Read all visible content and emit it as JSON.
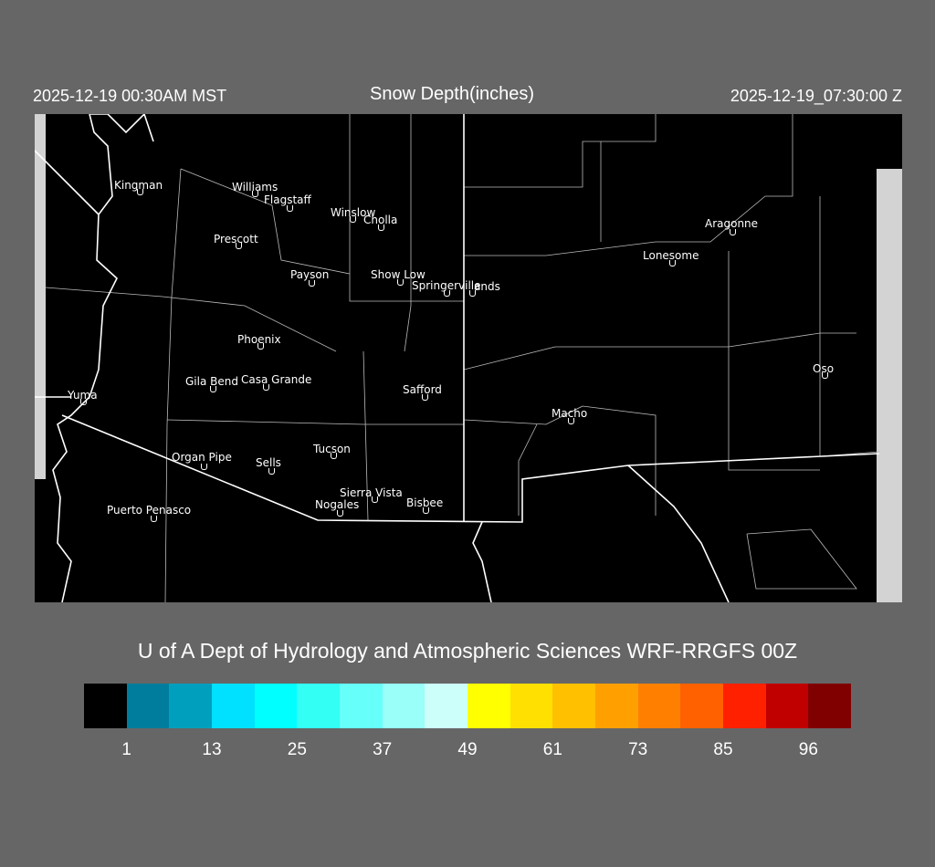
{
  "header": {
    "local_time": "2025-12-19 00:30AM MST",
    "title": "Snow Depth(inches)",
    "utc_time": "2025-12-19_07:30:00 Z"
  },
  "map": {
    "cities": [
      {
        "name": "Kingman"
      },
      {
        "name": "Williams"
      },
      {
        "name": "Flagstaff"
      },
      {
        "name": "Winslow"
      },
      {
        "name": "Cholla"
      },
      {
        "name": "Prescott"
      },
      {
        "name": "Payson"
      },
      {
        "name": "Show  Low"
      },
      {
        "name": "Springerville"
      },
      {
        "name": "ands"
      },
      {
        "name": "Lonesome"
      },
      {
        "name": "Aragonne"
      },
      {
        "name": "Phoenix"
      },
      {
        "name": "Gila  Bend"
      },
      {
        "name": "Casa  Grande"
      },
      {
        "name": "Safford"
      },
      {
        "name": "Yuma"
      },
      {
        "name": "Oso"
      },
      {
        "name": "Macho"
      },
      {
        "name": "Tucson"
      },
      {
        "name": "Organ  Pipe"
      },
      {
        "name": "Sells"
      },
      {
        "name": "Sierra  Vista"
      },
      {
        "name": "Nogales"
      },
      {
        "name": "Bisbee"
      },
      {
        "name": "Puerto  Penasco"
      }
    ]
  },
  "credit": "U of A Dept of Hydrology and Atmospheric Sciences WRF-RRGFS 00Z",
  "legend": {
    "colors": [
      "#000000",
      "#007d9c",
      "#009fbd",
      "#00e0ff",
      "#00ffff",
      "#33fff5",
      "#66fffa",
      "#99fff8",
      "#ccfffa",
      "#ffff00",
      "#ffe000",
      "#ffc000",
      "#ffa000",
      "#ff8000",
      "#ff6000",
      "#ff2000",
      "#c00000",
      "#800000"
    ],
    "ticks": [
      "1",
      "13",
      "25",
      "37",
      "49",
      "61",
      "73",
      "85",
      "96"
    ]
  }
}
